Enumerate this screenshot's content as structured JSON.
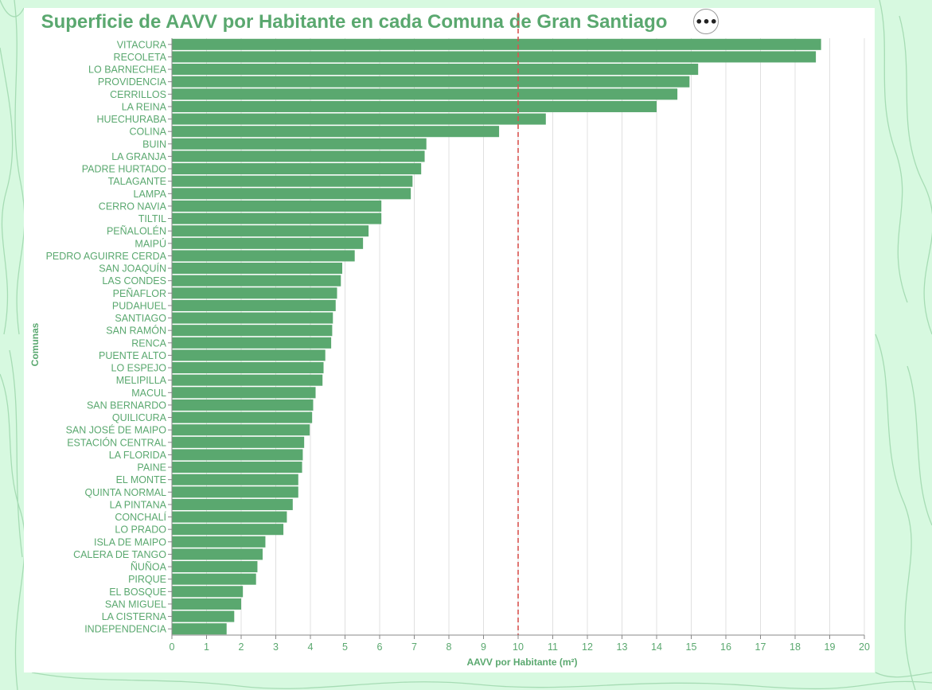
{
  "chart_data": {
    "type": "bar",
    "orientation": "horizontal",
    "title": "Superficie de AAVV por Habitante en cada Comuna de Gran Santiago",
    "xlabel": "AAVV por Habitante (m²)",
    "ylabel": "Comunas",
    "xlim": [
      0,
      20
    ],
    "xticks": [
      0,
      1,
      2,
      3,
      4,
      5,
      6,
      7,
      8,
      9,
      10,
      11,
      12,
      13,
      14,
      15,
      16,
      17,
      18,
      19,
      20
    ],
    "grid": "vertical",
    "reference_line": {
      "x": 10,
      "style": "dashed",
      "color": "#d9534f"
    },
    "bar_color": "#5aa86f",
    "categories": [
      "VITACURA",
      "RECOLETA",
      "LO BARNECHEA",
      "PROVIDENCIA",
      "CERRILLOS",
      "LA REINA",
      "HUECHURABA",
      "COLINA",
      "BUIN",
      "LA GRANJA",
      "PADRE HURTADO",
      "TALAGANTE",
      "LAMPA",
      "CERRO NAVIA",
      "TILTIL",
      "PEÑALOLÉN",
      "MAIPÚ",
      "PEDRO AGUIRRE CERDA",
      "SAN JOAQUÍN",
      "LAS CONDES",
      "PEÑAFLOR",
      "PUDAHUEL",
      "SANTIAGO",
      "SAN RAMÓN",
      "RENCA",
      "PUENTE ALTO",
      "LO ESPEJO",
      "MELIPILLA",
      "MACUL",
      "SAN BERNARDO",
      "QUILICURA",
      "SAN JOSÉ DE MAIPO",
      "ESTACIÓN CENTRAL",
      "LA FLORIDA",
      "PAINE",
      "EL MONTE",
      "QUINTA NORMAL",
      "LA PINTANA",
      "CONCHALÍ",
      "LO PRADO",
      "ISLA DE MAIPO",
      "CALERA DE TANGO",
      "ÑUÑOA",
      "PIRQUE",
      "EL BOSQUE",
      "SAN MIGUEL",
      "LA CISTERNA",
      "INDEPENDENCIA"
    ],
    "values": [
      18.75,
      18.6,
      15.2,
      14.95,
      14.6,
      14.0,
      10.8,
      9.45,
      7.35,
      7.3,
      7.2,
      6.95,
      6.9,
      6.05,
      6.05,
      5.68,
      5.52,
      5.28,
      4.92,
      4.88,
      4.77,
      4.73,
      4.65,
      4.63,
      4.6,
      4.43,
      4.38,
      4.35,
      4.15,
      4.08,
      4.05,
      3.98,
      3.82,
      3.78,
      3.76,
      3.65,
      3.65,
      3.49,
      3.32,
      3.22,
      2.7,
      2.62,
      2.47,
      2.43,
      2.05,
      2.0,
      1.8,
      1.58
    ]
  }
}
